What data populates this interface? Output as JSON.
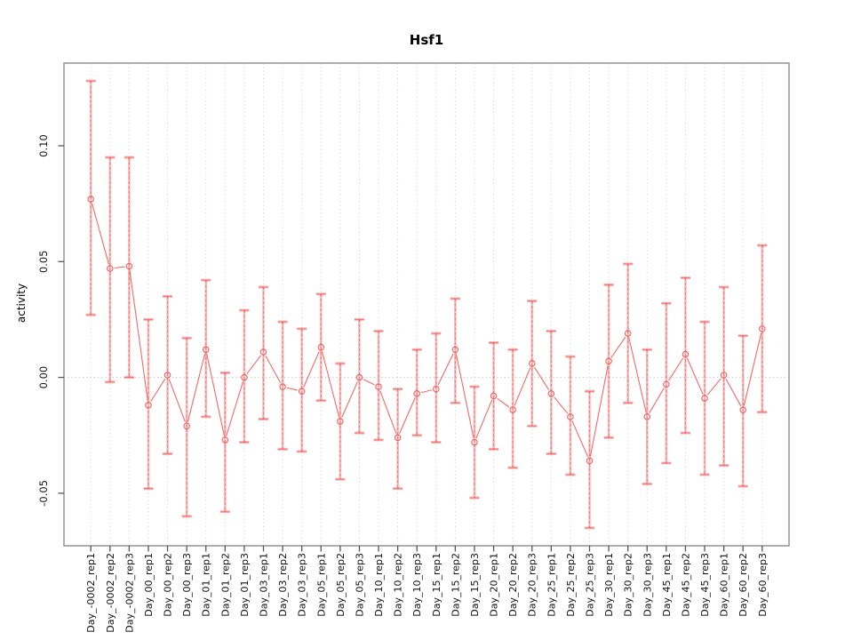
{
  "title": "Hsf1",
  "axes": {
    "y_label": "activity",
    "y_ticks": [
      {
        "label": "-0.05",
        "value": -0.05
      },
      {
        "label": "0.00",
        "value": 0.0
      },
      {
        "label": "0.05",
        "value": 0.05
      },
      {
        "label": "0.10",
        "value": 0.1
      }
    ]
  },
  "colors": {
    "series_red": "#f15454",
    "error_bar_pale": "#f8b0b0",
    "gridline_gray": "#dcdcdc",
    "zero_line_gray": "#c8c8c8",
    "plot_border_gray": "#999999",
    "tick_gray": "#555555",
    "label_black": "#111111"
  },
  "chart_data": {
    "type": "scatter",
    "subtype": "points-with-error-bars-connected",
    "title": "Hsf1",
    "xlabel": "",
    "ylabel": "activity",
    "ylim": [
      -0.0727,
      0.1357
    ],
    "grid": "vertical dotted gridline at each category; dotted horizontal line at y = 0",
    "legend": "none",
    "categories": [
      "Day_-0002_rep1",
      "Day_-0002_rep2",
      "Day_-0002_rep3",
      "Day_00_rep1",
      "Day_00_rep2",
      "Day_00_rep3",
      "Day_01_rep1",
      "Day_01_rep2",
      "Day_01_rep3",
      "Day_03_rep1",
      "Day_03_rep2",
      "Day_03_rep3",
      "Day_05_rep1",
      "Day_05_rep2",
      "Day_05_rep3",
      "Day_10_rep1",
      "Day_10_rep2",
      "Day_10_rep3",
      "Day_15_rep1",
      "Day_15_rep2",
      "Day_15_rep3",
      "Day_20_rep1",
      "Day_20_rep2",
      "Day_20_rep3",
      "Day_25_rep1",
      "Day_25_rep2",
      "Day_25_rep3",
      "Day_30_rep1",
      "Day_30_rep2",
      "Day_30_rep3",
      "Day_45_rep1",
      "Day_45_rep2",
      "Day_45_rep3",
      "Day_60_rep1",
      "Day_60_rep2",
      "Day_60_rep3"
    ],
    "series": [
      {
        "name": "activity",
        "values": [
          0.077,
          0.047,
          0.048,
          -0.012,
          0.001,
          -0.021,
          0.012,
          -0.027,
          0.0,
          0.011,
          -0.004,
          -0.006,
          0.013,
          -0.019,
          0.0,
          -0.004,
          -0.026,
          -0.007,
          -0.005,
          0.012,
          -0.028,
          -0.008,
          -0.014,
          0.006,
          -0.007,
          -0.017,
          -0.036,
          0.007,
          0.019,
          -0.017,
          -0.003,
          0.01,
          -0.009,
          0.001,
          -0.014,
          0.021
        ],
        "lower": [
          0.027,
          -0.002,
          0.0,
          -0.048,
          -0.033,
          -0.06,
          -0.017,
          -0.058,
          -0.028,
          -0.018,
          -0.031,
          -0.032,
          -0.01,
          -0.044,
          -0.024,
          -0.027,
          -0.048,
          -0.025,
          -0.028,
          -0.011,
          -0.052,
          -0.031,
          -0.039,
          -0.021,
          -0.033,
          -0.042,
          -0.065,
          -0.026,
          -0.011,
          -0.046,
          -0.037,
          -0.024,
          -0.042,
          -0.038,
          -0.047,
          -0.015
        ],
        "upper": [
          0.128,
          0.095,
          0.095,
          0.025,
          0.035,
          0.017,
          0.042,
          0.002,
          0.029,
          0.039,
          0.024,
          0.021,
          0.036,
          0.006,
          0.025,
          0.02,
          -0.005,
          0.012,
          0.019,
          0.034,
          -0.004,
          0.015,
          0.012,
          0.033,
          0.02,
          0.009,
          -0.006,
          0.04,
          0.049,
          0.012,
          0.032,
          0.043,
          0.024,
          0.039,
          0.018,
          0.057
        ]
      }
    ]
  }
}
